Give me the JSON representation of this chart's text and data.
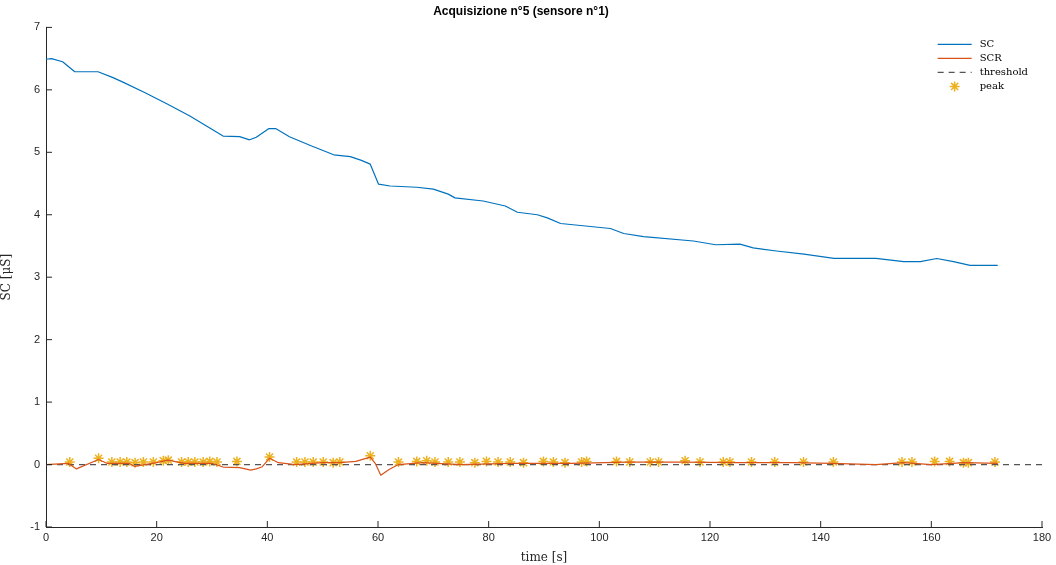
{
  "chart_data": {
    "type": "line",
    "title": "Acquisizione n°5 (sensore n°1)",
    "xlabel": "time [s]",
    "ylabel": "SC [μS]",
    "xlim": [
      0,
      180
    ],
    "xticks": [
      0,
      20,
      40,
      60,
      80,
      100,
      120,
      140,
      160,
      180
    ],
    "ylim": [
      -1,
      7
    ],
    "yticks": [
      -1,
      0,
      1,
      2,
      3,
      4,
      5,
      6,
      7
    ],
    "legend": "top right",
    "grid": false,
    "marker": "none",
    "series": [
      {
        "name": "SC",
        "color": "#0072bd",
        "x": [
          0,
          1,
          3,
          5.2,
          9.4,
          12,
          14,
          18,
          22,
          26,
          29,
          32,
          35,
          36.8,
          38,
          40.3,
          41.5,
          44,
          48,
          52,
          55,
          57,
          58.6,
          60.1,
          62.2,
          67,
          70,
          72.7,
          73.9,
          79,
          83,
          85.2,
          88.8,
          90.6,
          93,
          102,
          104.4,
          108,
          117,
          121,
          125.4,
          127.8,
          132,
          137,
          142.4,
          150,
          155,
          158,
          161,
          164,
          167,
          172
        ],
        "values": [
          6.49,
          6.5,
          6.45,
          6.29,
          6.29,
          6.2,
          6.12,
          5.95,
          5.77,
          5.58,
          5.42,
          5.26,
          5.25,
          5.2,
          5.24,
          5.38,
          5.38,
          5.25,
          5.1,
          4.96,
          4.93,
          4.87,
          4.81,
          4.49,
          4.46,
          4.44,
          4.41,
          4.33,
          4.27,
          4.22,
          4.14,
          4.04,
          4.0,
          3.95,
          3.86,
          3.78,
          3.7,
          3.65,
          3.58,
          3.52,
          3.53,
          3.47,
          3.42,
          3.37,
          3.3,
          3.3,
          3.25,
          3.25,
          3.3,
          3.25,
          3.19,
          3.19
        ]
      },
      {
        "name": "SCR",
        "color": "#d95319",
        "x": [
          0,
          4,
          5.5,
          9.5,
          11,
          15,
          16,
          20,
          22,
          25,
          30,
          32,
          35,
          37,
          38,
          39,
          40.4,
          42,
          45,
          50,
          53,
          56,
          58.6,
          59.5,
          60.5,
          62,
          63.7,
          68,
          75,
          85,
          95,
          105,
          115,
          125,
          135,
          142,
          150,
          155,
          160,
          166,
          172
        ],
        "values": [
          0,
          0.02,
          -0.07,
          0.08,
          0.02,
          0.02,
          -0.03,
          0.03,
          0.07,
          0.02,
          0.02,
          -0.04,
          -0.05,
          -0.09,
          -0.07,
          -0.04,
          0.1,
          0.03,
          0,
          0.03,
          0.03,
          0.05,
          0.12,
          0.02,
          -0.17,
          -0.08,
          0,
          0.03,
          0,
          0.02,
          0.02,
          0.04,
          0.04,
          0.03,
          0.03,
          0.02,
          0,
          0.03,
          0,
          0.03,
          0.02
        ]
      },
      {
        "name": "threshold",
        "type": "line",
        "line_style": "dashed",
        "color": "#555555",
        "x": [
          0,
          180
        ],
        "values": [
          0,
          0
        ]
      },
      {
        "name": "peak",
        "type": "scatter",
        "marker": "cross",
        "color": "#edb120",
        "x": [
          4.3,
          9.5,
          11.9,
          13.4,
          14.6,
          16.1,
          17.6,
          19.4,
          21.2,
          22.1,
          24.5,
          25.7,
          26.9,
          28.4,
          29.6,
          30.9,
          34.5,
          40.4,
          45.3,
          46.8,
          48.3,
          50.1,
          51.9,
          53.1,
          58.6,
          63.7,
          67,
          68.8,
          70.3,
          72.7,
          74.8,
          77.5,
          79.6,
          81.7,
          83.9,
          86.3,
          89.9,
          91.7,
          93.8,
          96.8,
          97.7,
          103.1,
          105.5,
          109.2,
          110.7,
          115.5,
          118.2,
          122.4,
          123.6,
          127.5,
          131.7,
          136.9,
          142.3,
          154.7,
          156.5,
          160.6,
          163.3,
          165.8,
          166.7,
          171.5
        ],
        "values": [
          0.04,
          0.1,
          0.04,
          0.04,
          0.04,
          0.03,
          0.04,
          0.04,
          0.06,
          0.07,
          0.04,
          0.04,
          0.04,
          0.04,
          0.05,
          0.04,
          0.05,
          0.12,
          0.04,
          0.04,
          0.04,
          0.04,
          0.03,
          0.04,
          0.14,
          0.04,
          0.05,
          0.06,
          0.04,
          0.04,
          0.04,
          0.03,
          0.05,
          0.04,
          0.04,
          0.03,
          0.05,
          0.04,
          0.03,
          0.04,
          0.05,
          0.05,
          0.04,
          0.04,
          0.04,
          0.06,
          0.04,
          0.04,
          0.04,
          0.04,
          0.04,
          0.04,
          0.04,
          0.04,
          0.04,
          0.05,
          0.05,
          0.03,
          0.03,
          0.04
        ]
      }
    ]
  }
}
